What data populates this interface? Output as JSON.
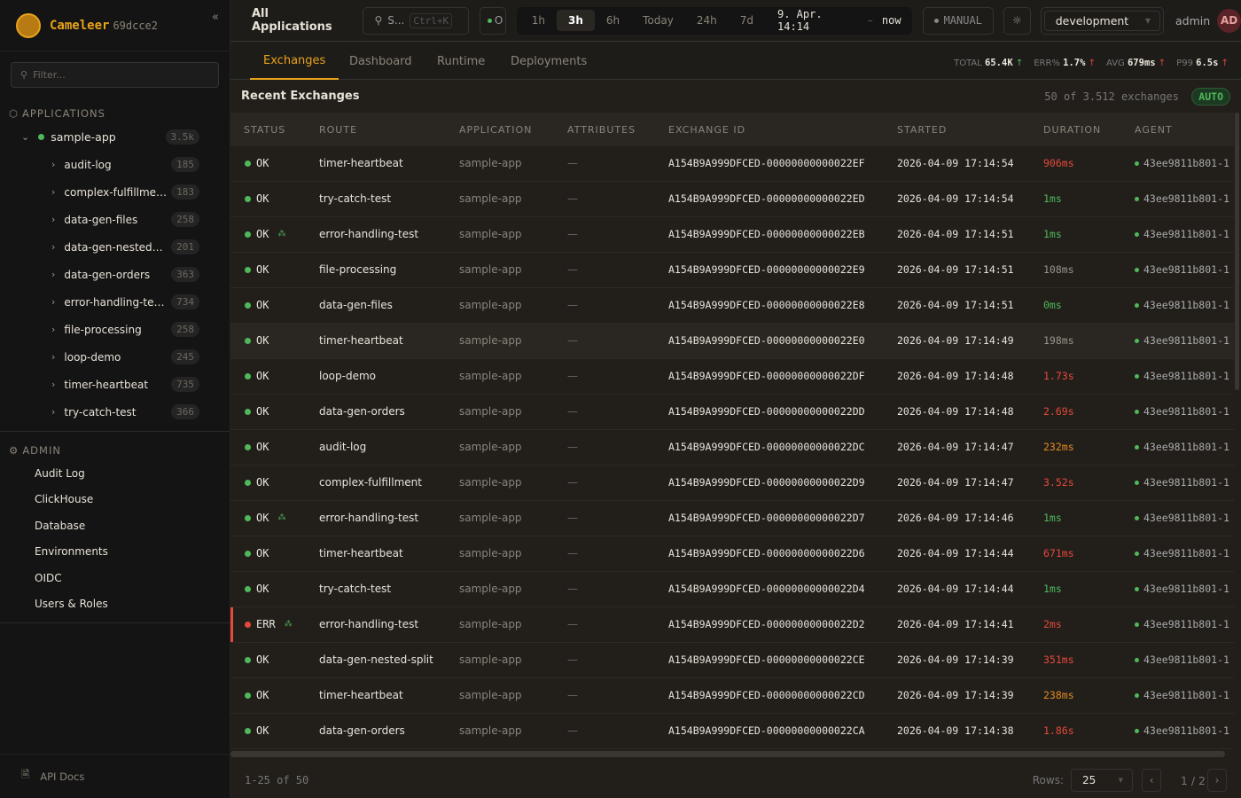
{
  "brand": {
    "name": "Cameleer",
    "version": "69dcce2"
  },
  "sidebar": {
    "filter_placeholder": "Filter...",
    "applications_label": "APPLICATIONS",
    "app": {
      "name": "sample-app",
      "count": "3.5k",
      "status_color": "#4fb85a"
    },
    "routes": [
      {
        "name": "audit-log",
        "count": "185"
      },
      {
        "name": "complex-fulfillme…",
        "count": "183"
      },
      {
        "name": "data-gen-files",
        "count": "258"
      },
      {
        "name": "data-gen-nested…",
        "count": "201"
      },
      {
        "name": "data-gen-orders",
        "count": "363"
      },
      {
        "name": "error-handling-te…",
        "count": "734"
      },
      {
        "name": "file-processing",
        "count": "258"
      },
      {
        "name": "loop-demo",
        "count": "245"
      },
      {
        "name": "timer-heartbeat",
        "count": "735"
      },
      {
        "name": "try-catch-test",
        "count": "366"
      }
    ],
    "admin_label": "ADMIN",
    "admin_items": [
      "Audit Log",
      "ClickHouse",
      "Database",
      "Environments",
      "OIDC",
      "Users & Roles"
    ],
    "api_docs": "API Docs"
  },
  "topbar": {
    "title": "All Applications",
    "search_placeholder": "S...",
    "search_shortcut": "Ctrl+K",
    "status_toggle": "O",
    "ranges": [
      "1h",
      "3h",
      "6h",
      "Today",
      "24h",
      "7d"
    ],
    "active_range": "3h",
    "range_from": "9. Apr. 14:14",
    "range_sep": "–",
    "range_to": "now",
    "refresh_mode": "MANUAL",
    "environment": "development",
    "user": "admin",
    "avatar": "AD"
  },
  "tabs": [
    "Exchanges",
    "Dashboard",
    "Runtime",
    "Deployments"
  ],
  "active_tab": "Exchanges",
  "kpis": {
    "total_label": "TOTAL",
    "total": "65.4K",
    "err_label": "ERR%",
    "err": "1.7%",
    "avg_label": "AVG",
    "avg": "679ms",
    "p99_label": "P99",
    "p99": "6.5s"
  },
  "list": {
    "title": "Recent Exchanges",
    "summary": "50 of 3.512 exchanges",
    "auto": "AUTO"
  },
  "columns": [
    "STATUS",
    "ROUTE",
    "APPLICATION",
    "ATTRIBUTES",
    "EXCHANGE ID",
    "STARTED",
    "DURATION",
    "AGENT"
  ],
  "colors": {
    "accent": "#e8a21a",
    "ok": "#4fb85a",
    "error": "#e5493a",
    "warn": "#e08a1e",
    "neutral": "#9a9388"
  },
  "rows": [
    {
      "status": "OK",
      "trace": false,
      "route": "timer-heartbeat",
      "app": "sample-app",
      "attrs": "—",
      "id": "A154B9A999DFCED-00000000000022EF",
      "started": "2026-04-09 17:14:54",
      "duration": "906ms",
      "dur_level": "error",
      "agent": "43ee9811b801-1"
    },
    {
      "status": "OK",
      "trace": false,
      "route": "try-catch-test",
      "app": "sample-app",
      "attrs": "—",
      "id": "A154B9A999DFCED-00000000000022ED",
      "started": "2026-04-09 17:14:54",
      "duration": "1ms",
      "dur_level": "ok",
      "agent": "43ee9811b801-1"
    },
    {
      "status": "OK",
      "trace": true,
      "route": "error-handling-test",
      "app": "sample-app",
      "attrs": "—",
      "id": "A154B9A999DFCED-00000000000022EB",
      "started": "2026-04-09 17:14:51",
      "duration": "1ms",
      "dur_level": "ok",
      "agent": "43ee9811b801-1"
    },
    {
      "status": "OK",
      "trace": false,
      "route": "file-processing",
      "app": "sample-app",
      "attrs": "—",
      "id": "A154B9A999DFCED-00000000000022E9",
      "started": "2026-04-09 17:14:51",
      "duration": "108ms",
      "dur_level": "neutral",
      "agent": "43ee9811b801-1"
    },
    {
      "status": "OK",
      "trace": false,
      "route": "data-gen-files",
      "app": "sample-app",
      "attrs": "—",
      "id": "A154B9A999DFCED-00000000000022E8",
      "started": "2026-04-09 17:14:51",
      "duration": "0ms",
      "dur_level": "ok",
      "agent": "43ee9811b801-1"
    },
    {
      "status": "OK",
      "trace": false,
      "route": "timer-heartbeat",
      "app": "sample-app",
      "attrs": "—",
      "id": "A154B9A999DFCED-00000000000022E0",
      "started": "2026-04-09 17:14:49",
      "duration": "198ms",
      "dur_level": "neutral",
      "agent": "43ee9811b801-1",
      "highlighted": true
    },
    {
      "status": "OK",
      "trace": false,
      "route": "loop-demo",
      "app": "sample-app",
      "attrs": "—",
      "id": "A154B9A999DFCED-00000000000022DF",
      "started": "2026-04-09 17:14:48",
      "duration": "1.73s",
      "dur_level": "error",
      "agent": "43ee9811b801-1"
    },
    {
      "status": "OK",
      "trace": false,
      "route": "data-gen-orders",
      "app": "sample-app",
      "attrs": "—",
      "id": "A154B9A999DFCED-00000000000022DD",
      "started": "2026-04-09 17:14:48",
      "duration": "2.69s",
      "dur_level": "error",
      "agent": "43ee9811b801-1"
    },
    {
      "status": "OK",
      "trace": false,
      "route": "audit-log",
      "app": "sample-app",
      "attrs": "—",
      "id": "A154B9A999DFCED-00000000000022DC",
      "started": "2026-04-09 17:14:47",
      "duration": "232ms",
      "dur_level": "warn",
      "agent": "43ee9811b801-1"
    },
    {
      "status": "OK",
      "trace": false,
      "route": "complex-fulfillment",
      "app": "sample-app",
      "attrs": "—",
      "id": "A154B9A999DFCED-00000000000022D9",
      "started": "2026-04-09 17:14:47",
      "duration": "3.52s",
      "dur_level": "error",
      "agent": "43ee9811b801-1"
    },
    {
      "status": "OK",
      "trace": true,
      "route": "error-handling-test",
      "app": "sample-app",
      "attrs": "—",
      "id": "A154B9A999DFCED-00000000000022D7",
      "started": "2026-04-09 17:14:46",
      "duration": "1ms",
      "dur_level": "ok",
      "agent": "43ee9811b801-1"
    },
    {
      "status": "OK",
      "trace": false,
      "route": "timer-heartbeat",
      "app": "sample-app",
      "attrs": "—",
      "id": "A154B9A999DFCED-00000000000022D6",
      "started": "2026-04-09 17:14:44",
      "duration": "671ms",
      "dur_level": "error",
      "agent": "43ee9811b801-1"
    },
    {
      "status": "OK",
      "trace": false,
      "route": "try-catch-test",
      "app": "sample-app",
      "attrs": "—",
      "id": "A154B9A999DFCED-00000000000022D4",
      "started": "2026-04-09 17:14:44",
      "duration": "1ms",
      "dur_level": "ok",
      "agent": "43ee9811b801-1"
    },
    {
      "status": "ERR",
      "trace": true,
      "route": "error-handling-test",
      "app": "sample-app",
      "attrs": "—",
      "id": "A154B9A999DFCED-00000000000022D2",
      "started": "2026-04-09 17:14:41",
      "duration": "2ms",
      "dur_level": "error",
      "agent": "43ee9811b801-1"
    },
    {
      "status": "OK",
      "trace": false,
      "route": "data-gen-nested-split",
      "app": "sample-app",
      "attrs": "—",
      "id": "A154B9A999DFCED-00000000000022CE",
      "started": "2026-04-09 17:14:39",
      "duration": "351ms",
      "dur_level": "error",
      "agent": "43ee9811b801-1"
    },
    {
      "status": "OK",
      "trace": false,
      "route": "timer-heartbeat",
      "app": "sample-app",
      "attrs": "—",
      "id": "A154B9A999DFCED-00000000000022CD",
      "started": "2026-04-09 17:14:39",
      "duration": "238ms",
      "dur_level": "warn",
      "agent": "43ee9811b801-1"
    },
    {
      "status": "OK",
      "trace": false,
      "route": "data-gen-orders",
      "app": "sample-app",
      "attrs": "—",
      "id": "A154B9A999DFCED-00000000000022CA",
      "started": "2026-04-09 17:14:38",
      "duration": "1.86s",
      "dur_level": "error",
      "agent": "43ee9811b801-1"
    }
  ],
  "footer": {
    "range": "1-25 of 50",
    "rows_label": "Rows:",
    "rows_value": "25",
    "page": "1",
    "page_sep": "/",
    "pages": "2"
  }
}
